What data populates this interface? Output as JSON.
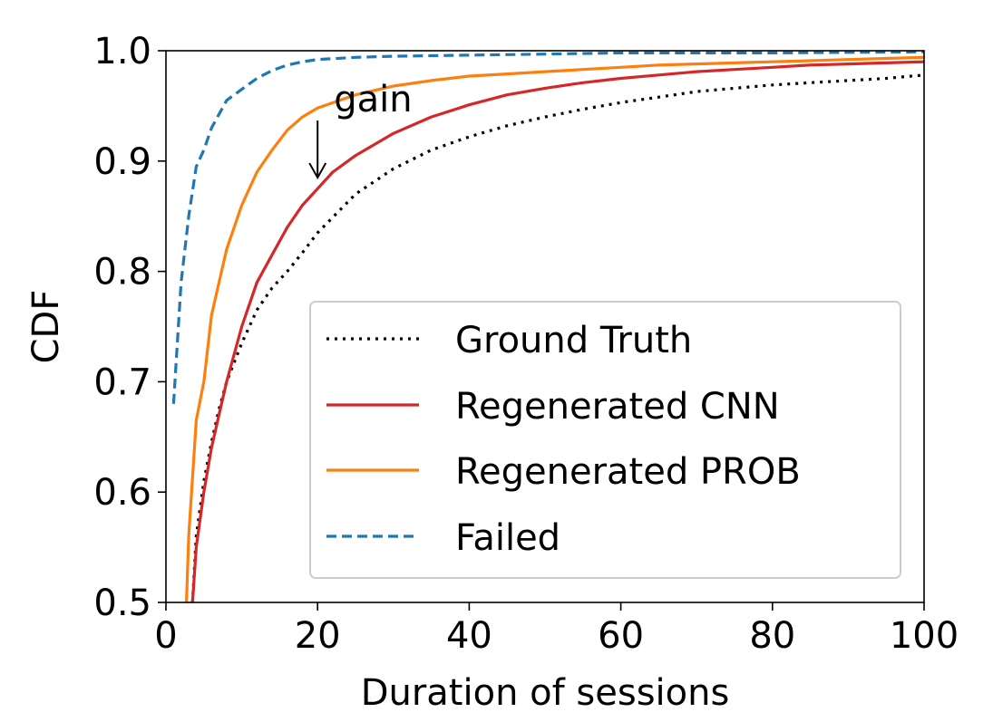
{
  "chart_data": {
    "type": "line",
    "title": "",
    "xlabel": "Duration of sessions",
    "ylabel": "CDF",
    "xlim": [
      0,
      100
    ],
    "ylim": [
      0.5,
      1.0
    ],
    "xticks": [
      0,
      20,
      40,
      60,
      80,
      100
    ],
    "xtick_labels": [
      "0",
      "20",
      "40",
      "60",
      "80",
      "100"
    ],
    "yticks": [
      0.5,
      0.6,
      0.7,
      0.8,
      0.9,
      1.0
    ],
    "ytick_labels": [
      "0.5",
      "0.6",
      "0.7",
      "0.8",
      "0.9",
      "1.0"
    ],
    "grid": false,
    "legend_position": "lower-right",
    "series": [
      {
        "name": "Ground Truth",
        "color": "#000000",
        "style": "dotted",
        "x": [
          3.5,
          4,
          5,
          6,
          7,
          8,
          10,
          12,
          14,
          16,
          18,
          20,
          25,
          30,
          35,
          40,
          45,
          50,
          55,
          60,
          65,
          70,
          75,
          80,
          85,
          90,
          95,
          100
        ],
        "y": [
          0.5,
          0.56,
          0.61,
          0.645,
          0.675,
          0.7,
          0.735,
          0.765,
          0.785,
          0.8,
          0.817,
          0.835,
          0.87,
          0.893,
          0.91,
          0.922,
          0.932,
          0.94,
          0.947,
          0.953,
          0.958,
          0.963,
          0.966,
          0.969,
          0.971,
          0.973,
          0.975,
          0.978
        ]
      },
      {
        "name": "Regenerated CNN",
        "color": "#d62728",
        "style": "solid",
        "x": [
          3.5,
          4,
          5,
          6,
          7,
          8,
          10,
          12,
          14,
          16,
          18,
          20,
          22,
          25,
          30,
          35,
          40,
          45,
          50,
          55,
          60,
          65,
          70,
          75,
          80,
          85,
          90,
          95,
          100
        ],
        "y": [
          0.5,
          0.55,
          0.6,
          0.64,
          0.67,
          0.7,
          0.75,
          0.79,
          0.815,
          0.84,
          0.86,
          0.875,
          0.89,
          0.905,
          0.925,
          0.94,
          0.951,
          0.96,
          0.966,
          0.971,
          0.975,
          0.978,
          0.981,
          0.983,
          0.985,
          0.987,
          0.988,
          0.989,
          0.99
        ]
      },
      {
        "name": "Regenerated PROB",
        "color": "#ff7f0e",
        "style": "solid",
        "x": [
          2.7,
          3,
          4,
          5,
          6,
          7,
          8,
          10,
          12,
          14,
          16,
          18,
          20,
          25,
          30,
          35,
          40,
          45,
          50,
          55,
          60,
          65,
          70,
          75,
          80,
          85,
          90,
          95,
          100
        ],
        "y": [
          0.5,
          0.56,
          0.665,
          0.7,
          0.76,
          0.79,
          0.82,
          0.86,
          0.89,
          0.91,
          0.928,
          0.94,
          0.948,
          0.96,
          0.968,
          0.973,
          0.977,
          0.979,
          0.981,
          0.983,
          0.985,
          0.987,
          0.988,
          0.989,
          0.99,
          0.991,
          0.992,
          0.993,
          0.994
        ]
      },
      {
        "name": "Failed",
        "color": "#1f77b4",
        "style": "dashed",
        "x": [
          1,
          2,
          3,
          4,
          5,
          6,
          8,
          10,
          12,
          14,
          16,
          18,
          20,
          25,
          30,
          40,
          50,
          60,
          80,
          100
        ],
        "y": [
          0.68,
          0.79,
          0.85,
          0.895,
          0.91,
          0.93,
          0.955,
          0.965,
          0.975,
          0.982,
          0.987,
          0.99,
          0.992,
          0.994,
          0.995,
          0.996,
          0.997,
          0.998,
          0.998,
          0.999
        ]
      }
    ],
    "annotations": [
      {
        "text": "gain",
        "arrow_from": [
          20,
          0.94
        ],
        "arrow_to": [
          20,
          0.885
        ]
      }
    ]
  }
}
